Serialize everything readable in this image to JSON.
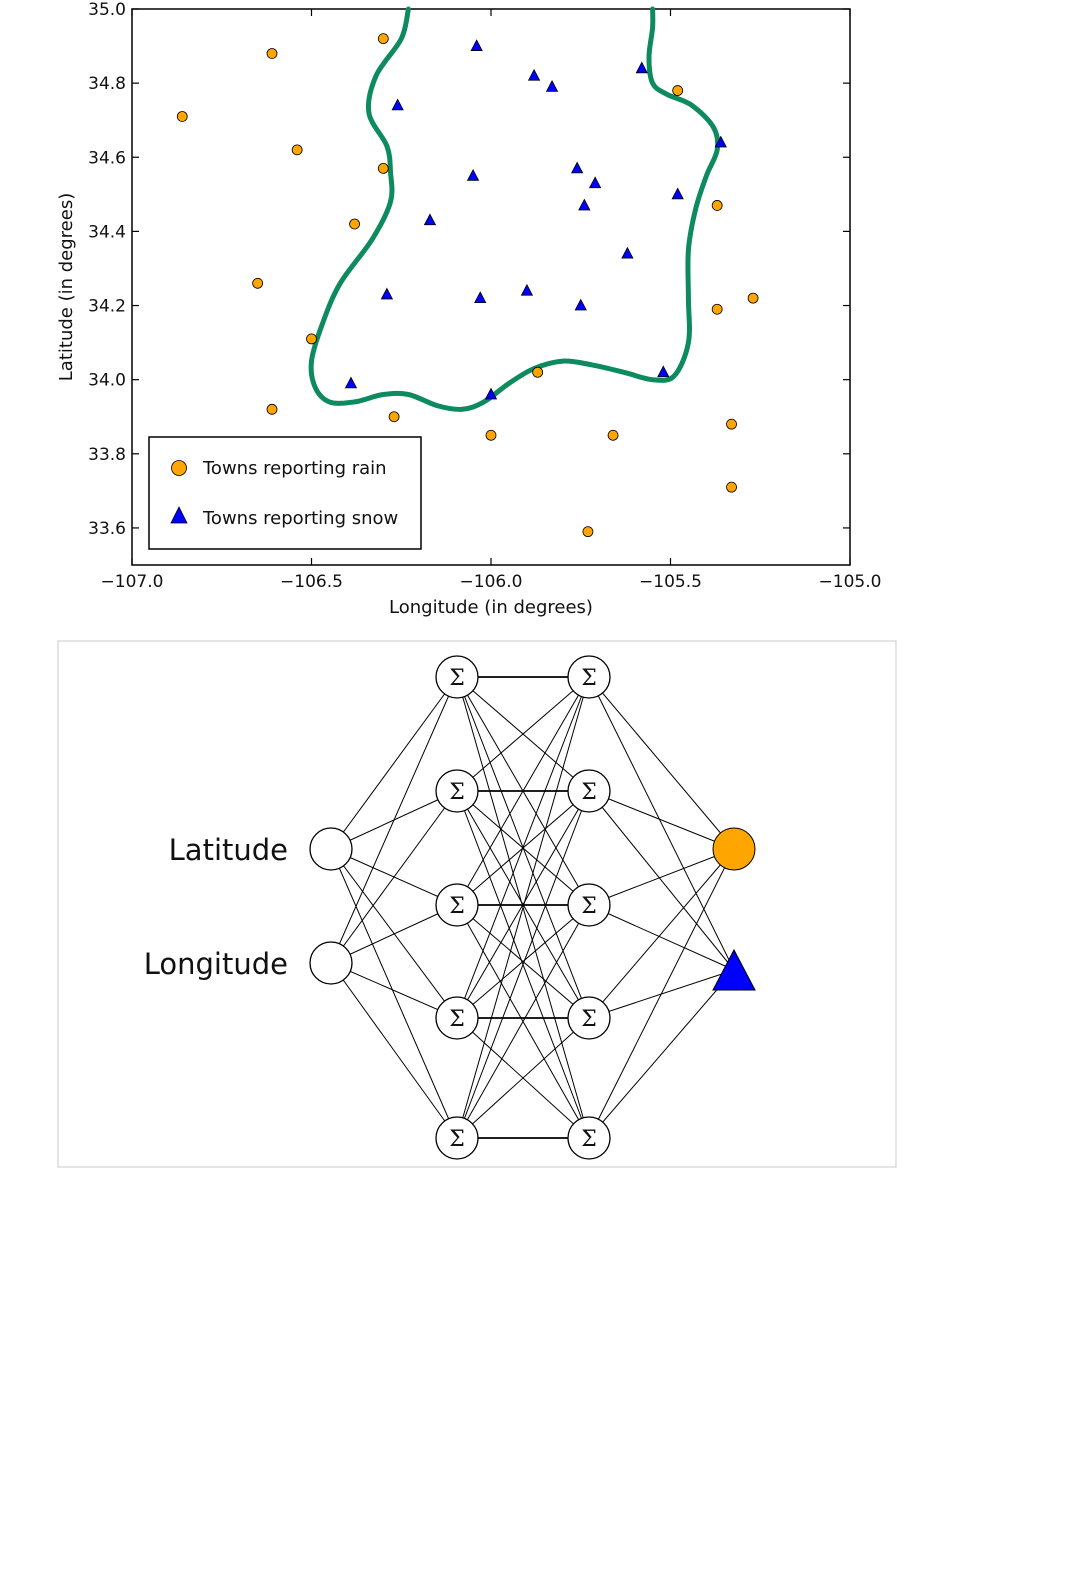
{
  "chart_data": {
    "type": "scatter",
    "xlabel": "Longitude (in degrees)",
    "ylabel": "Latitude (in degrees)",
    "xlim": [
      -107.0,
      -105.0
    ],
    "ylim": [
      33.5,
      35.0
    ],
    "xticks": [
      -107.0,
      -106.5,
      -106.0,
      -105.5,
      -105.0
    ],
    "xtick_labels": [
      "−107.0",
      "−106.5",
      "−106.0",
      "−105.5",
      "−105.0"
    ],
    "yticks": [
      33.6,
      33.8,
      34.0,
      34.2,
      34.4,
      34.6,
      34.8,
      35.0
    ],
    "ytick_labels": [
      "33.6",
      "33.8",
      "34.0",
      "34.2",
      "34.4",
      "34.6",
      "34.8",
      "35.0"
    ],
    "grid": false,
    "legend_position": "bottom-left",
    "series": [
      {
        "name": "Towns reporting rain",
        "marker": "circle",
        "color": "#FFA500",
        "points": [
          [
            -106.86,
            34.71
          ],
          [
            -106.61,
            34.88
          ],
          [
            -106.3,
            34.92
          ],
          [
            -106.54,
            34.62
          ],
          [
            -106.3,
            34.57
          ],
          [
            -106.38,
            34.42
          ],
          [
            -106.65,
            34.26
          ],
          [
            -106.5,
            34.11
          ],
          [
            -106.61,
            33.92
          ],
          [
            -106.27,
            33.9
          ],
          [
            -106.0,
            33.85
          ],
          [
            -105.87,
            34.02
          ],
          [
            -105.66,
            33.85
          ],
          [
            -105.73,
            33.59
          ],
          [
            -105.48,
            34.78
          ],
          [
            -105.37,
            34.47
          ],
          [
            -105.37,
            34.19
          ],
          [
            -105.27,
            34.22
          ],
          [
            -105.33,
            33.88
          ],
          [
            -105.33,
            33.71
          ]
        ]
      },
      {
        "name": "Towns reporting snow",
        "marker": "triangle",
        "color": "#0000FF",
        "points": [
          [
            -106.04,
            34.9
          ],
          [
            -105.88,
            34.82
          ],
          [
            -105.83,
            34.79
          ],
          [
            -105.58,
            34.84
          ],
          [
            -106.26,
            34.74
          ],
          [
            -105.36,
            34.64
          ],
          [
            -105.76,
            34.57
          ],
          [
            -105.71,
            34.53
          ],
          [
            -106.05,
            34.55
          ],
          [
            -105.74,
            34.47
          ],
          [
            -105.48,
            34.5
          ],
          [
            -106.17,
            34.43
          ],
          [
            -105.62,
            34.34
          ],
          [
            -106.29,
            34.23
          ],
          [
            -106.03,
            34.22
          ],
          [
            -105.9,
            34.24
          ],
          [
            -105.75,
            34.2
          ],
          [
            -106.39,
            33.99
          ],
          [
            -106.0,
            33.96
          ],
          [
            -105.52,
            34.02
          ]
        ]
      }
    ],
    "boundary": {
      "color": "#0E8A5F",
      "points": [
        [
          -106.23,
          35.0
        ],
        [
          -106.25,
          34.92
        ],
        [
          -106.32,
          34.82
        ],
        [
          -106.34,
          34.72
        ],
        [
          -106.29,
          34.63
        ],
        [
          -106.28,
          34.56
        ],
        [
          -106.28,
          34.48
        ],
        [
          -106.33,
          34.38
        ],
        [
          -106.42,
          34.26
        ],
        [
          -106.47,
          34.15
        ],
        [
          -106.5,
          34.05
        ],
        [
          -106.49,
          33.98
        ],
        [
          -106.45,
          33.94
        ],
        [
          -106.38,
          33.94
        ],
        [
          -106.3,
          33.96
        ],
        [
          -106.23,
          33.96
        ],
        [
          -106.15,
          33.93
        ],
        [
          -106.08,
          33.92
        ],
        [
          -106.02,
          33.94
        ],
        [
          -105.95,
          33.99
        ],
        [
          -105.88,
          34.03
        ],
        [
          -105.8,
          34.05
        ],
        [
          -105.72,
          34.04
        ],
        [
          -105.63,
          34.02
        ],
        [
          -105.55,
          34.0
        ],
        [
          -105.49,
          34.01
        ],
        [
          -105.45,
          34.1
        ],
        [
          -105.45,
          34.22
        ],
        [
          -105.45,
          34.35
        ],
        [
          -105.43,
          34.46
        ],
        [
          -105.4,
          34.55
        ],
        [
          -105.37,
          34.62
        ],
        [
          -105.38,
          34.68
        ],
        [
          -105.44,
          34.74
        ],
        [
          -105.51,
          34.77
        ],
        [
          -105.55,
          34.8
        ],
        [
          -105.56,
          34.87
        ],
        [
          -105.55,
          34.95
        ],
        [
          -105.55,
          35.0
        ]
      ]
    }
  },
  "network": {
    "input_labels": [
      "Latitude",
      "Longitude"
    ],
    "sigma_symbol": "Σ",
    "hidden_layer_sizes": [
      5,
      5
    ],
    "output_colors": [
      "#FFA500",
      "#0000FF"
    ]
  }
}
